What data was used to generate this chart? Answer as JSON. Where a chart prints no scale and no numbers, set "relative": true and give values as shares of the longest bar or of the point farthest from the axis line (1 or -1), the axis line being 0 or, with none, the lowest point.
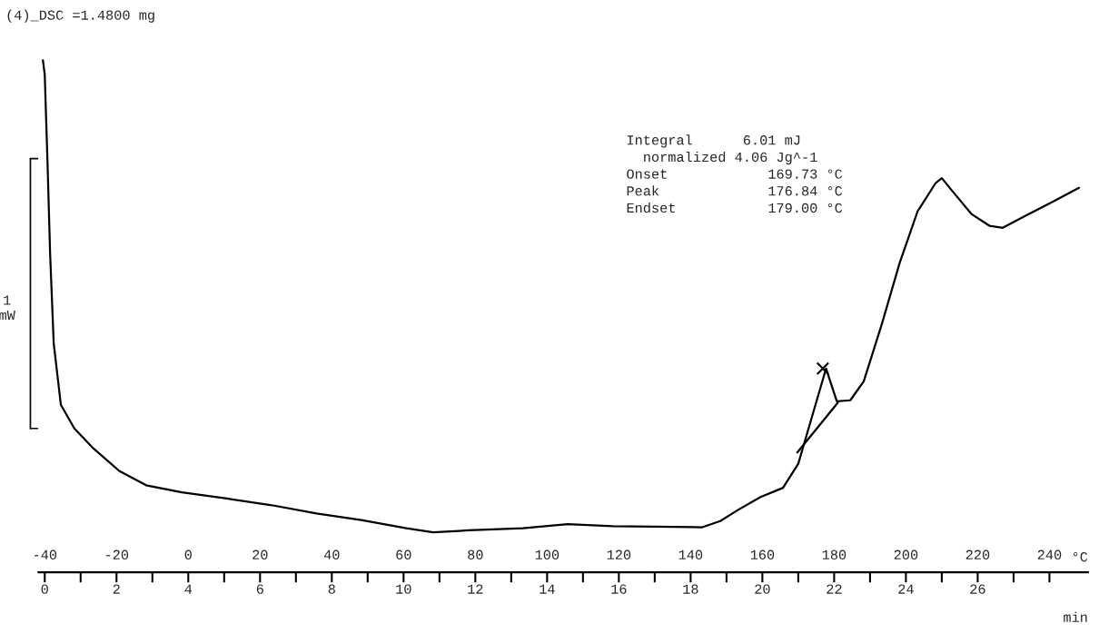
{
  "chart_data": {
    "type": "line",
    "title": "(4)_DSC =1.4800 mg",
    "relative": true,
    "color": "#000000",
    "xlabel": "°C",
    "x2label": "min",
    "xlim": [
      -41.75,
      250.75
    ],
    "xticks": [
      -40,
      {
        "value": -30,
        "label": null
      },
      -20,
      {
        "value": -10,
        "label": null
      },
      0,
      {
        "value": 10,
        "label": null
      },
      20,
      {
        "value": 30,
        "label": null
      },
      40,
      {
        "value": 50,
        "label": null
      },
      60,
      {
        "value": 70,
        "label": null
      },
      80,
      {
        "value": 90,
        "label": null
      },
      100,
      {
        "value": 110,
        "label": null
      },
      120,
      {
        "value": 130,
        "label": null
      },
      140,
      {
        "value": 150,
        "label": null
      },
      160,
      {
        "value": 170,
        "label": null
      },
      180,
      {
        "value": 190,
        "label": null
      },
      200,
      {
        "value": 210,
        "label": null
      },
      220,
      {
        "value": 230,
        "label": null
      },
      240
    ],
    "x2lim": [
      -0.175,
      29.075
    ],
    "x2ticks": [
      0,
      2,
      4,
      6,
      8,
      10,
      12,
      14,
      16,
      18,
      20,
      22,
      24,
      26
    ],
    "ylabel": "1 mW",
    "tick_labels": "x",
    "grid": false,
    "annotations": [
      "Integral      6.01 mJ\n  normalized 4.06 Jg^-1\nOnset            169.73 °C\nPeak             176.84 °C\nEndset           179.00 °C"
    ],
    "series": [
      {
        "x": [
          -40.5,
          -40,
          -39.25,
          -38.5,
          -37.5,
          -35.5,
          -31.75,
          -26.75,
          -19.25,
          -11.75,
          -1.75,
          10.75,
          23.25,
          35.75,
          48.25,
          60.75,
          68.25,
          78.25,
          93.25,
          105.75,
          118.25,
          143.25,
          148.25,
          153.25,
          159.5,
          165.75,
          170,
          177.75,
          180.75,
          184.5,
          188.25,
          193.25,
          198.25,
          203.25,
          208.25,
          210,
          213.25,
          218.25,
          223.25,
          227,
          233.25,
          240.75,
          248.25
        ],
        "values": [
          1.0,
          0.972,
          0.806,
          0.622,
          0.447,
          0.327,
          0.281,
          0.244,
          0.198,
          0.17,
          0.156,
          0.144,
          0.131,
          0.115,
          0.102,
          0.086,
          0.078,
          0.082,
          0.086,
          0.094,
          0.09,
          0.088,
          0.1,
          0.122,
          0.147,
          0.165,
          0.212,
          0.398,
          0.334,
          0.336,
          0.373,
          0.484,
          0.604,
          0.705,
          0.76,
          0.77,
          0.742,
          0.7,
          0.677,
          0.673,
          0.696,
          0.723,
          0.751
        ]
      },
      {
        "x": [
          169.73,
          181.0
        ],
        "values": [
          0.234,
          0.331
        ]
      },
      {
        "type": "scatter",
        "color": "#000000",
        "marker": "cross",
        "x": [
          176.84
        ],
        "values": [
          0.398
        ]
      }
    ]
  }
}
